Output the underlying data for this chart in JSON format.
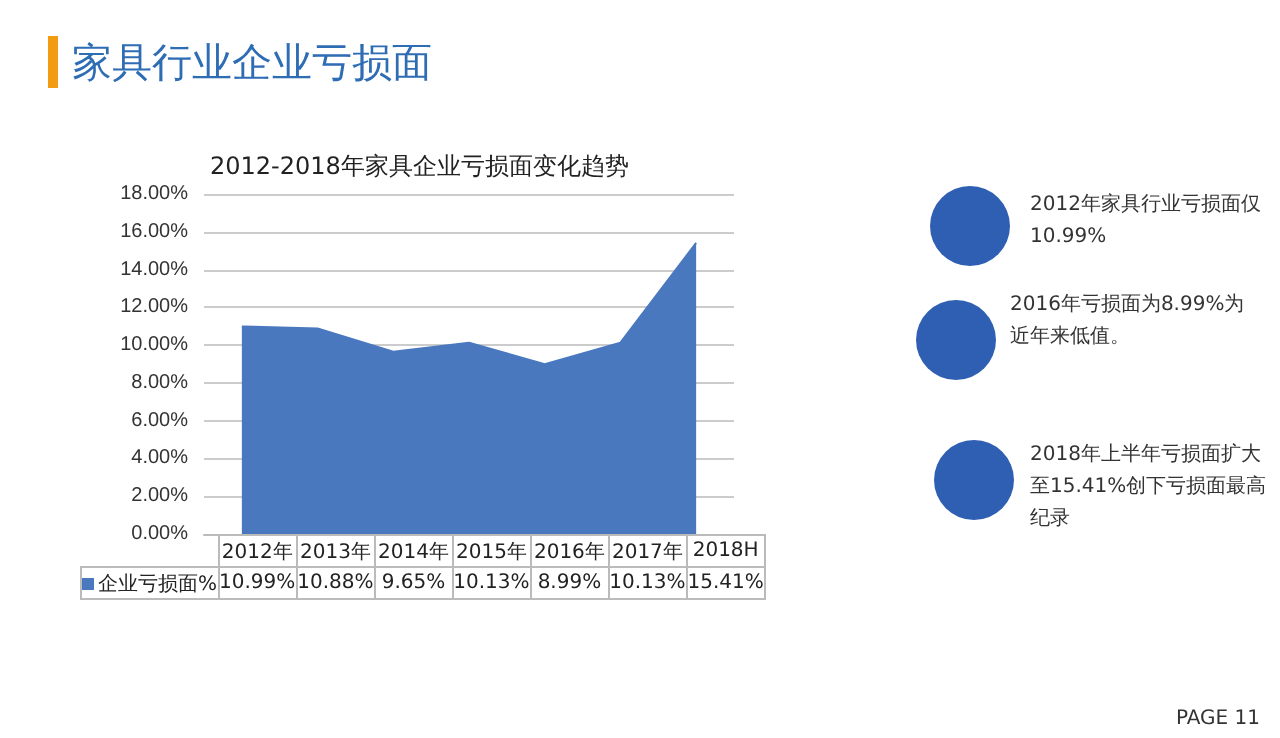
{
  "chart_data": {
    "type": "area",
    "title": "家具行业企业亏损面",
    "subtitle": "2012-2018年家具企业亏损面变化趋势",
    "categories": [
      "2012年",
      "2013年",
      "2014年",
      "2015年",
      "2016年",
      "2017年",
      "2018H"
    ],
    "series": [
      {
        "name": "企业亏损面%",
        "color": "#4a78bf",
        "values": [
          10.99,
          10.88,
          9.65,
          10.13,
          8.99,
          10.13,
          15.41
        ],
        "value_labels": [
          "10.99%",
          "10.88%",
          "9.65%",
          "10.13%",
          "8.99%",
          "10.13%",
          "15.41%"
        ]
      }
    ],
    "ylim": [
      0,
      18
    ],
    "yticks": [
      {
        "value": 0,
        "label": "0.00%"
      },
      {
        "value": 2,
        "label": "2.00%"
      },
      {
        "value": 4,
        "label": "4.00%"
      },
      {
        "value": 6,
        "label": "6.00%"
      },
      {
        "value": 8,
        "label": "8.00%"
      },
      {
        "value": 10,
        "label": "10.00%"
      },
      {
        "value": 12,
        "label": "12.00%"
      },
      {
        "value": 14,
        "label": "14.00%"
      },
      {
        "value": 16,
        "label": "16.00%"
      },
      {
        "value": 18,
        "label": "18.00%"
      }
    ],
    "grid": "y",
    "legend": "bottom left",
    "annotations": [
      "2012年家具行业亏损面仅10.99%",
      "2016年亏损面为8.99%为近年来低值。",
      "2018年上半年亏损面扩大至15.41%创下亏损面最高纪录",
      "PAGE 11"
    ]
  }
}
